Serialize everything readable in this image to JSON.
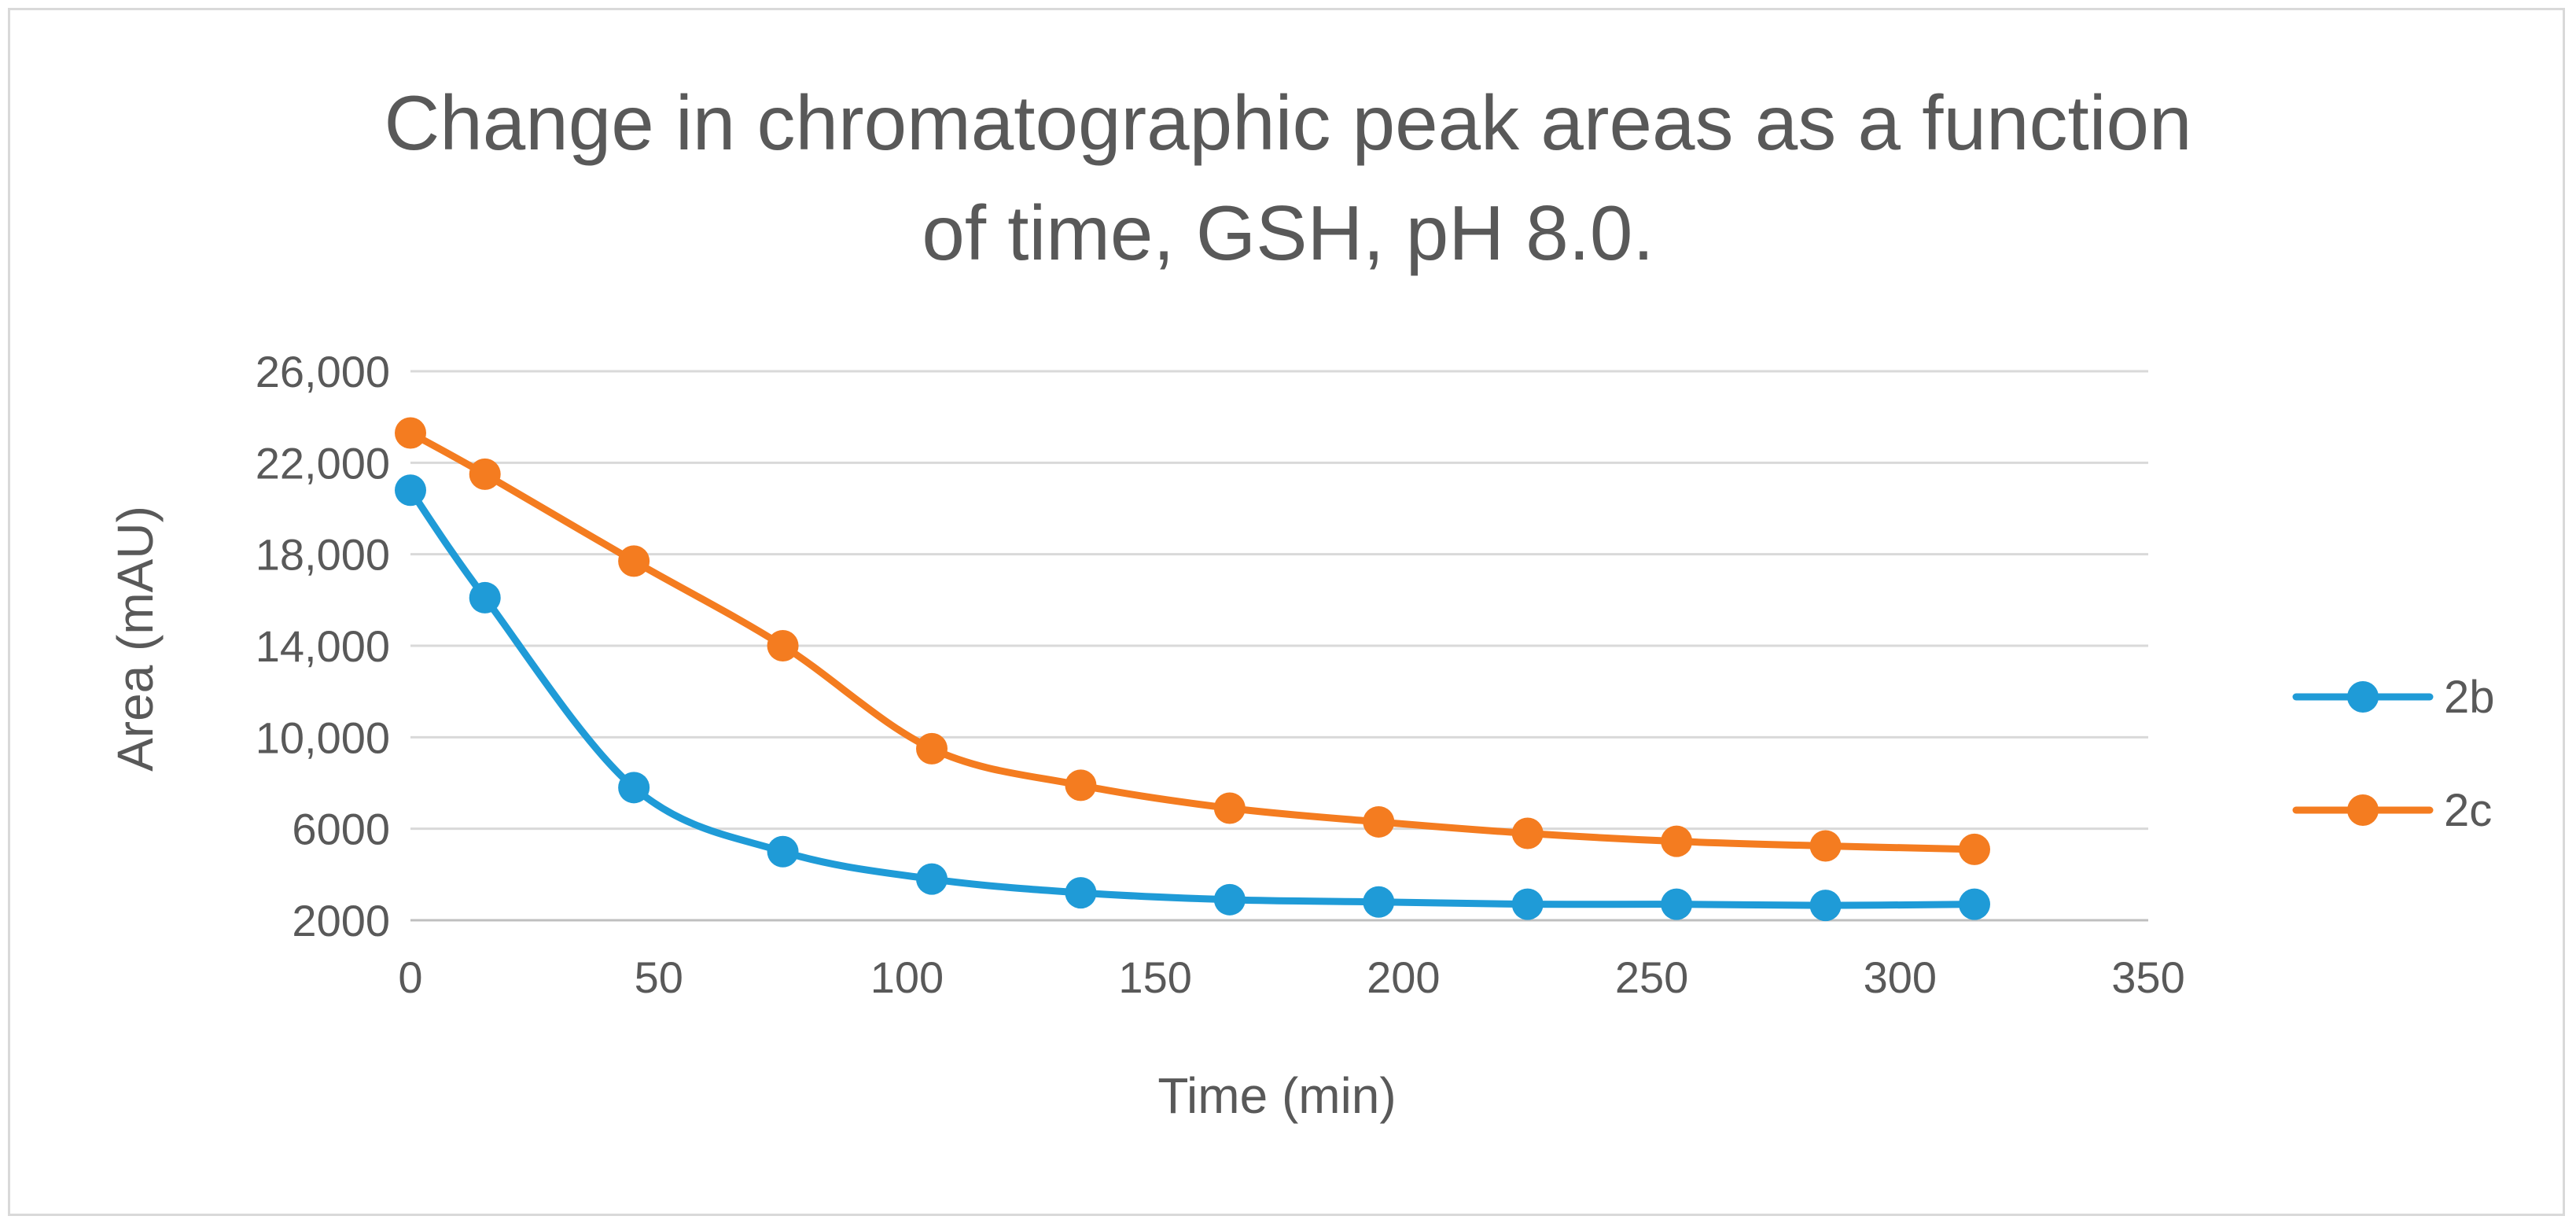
{
  "chart_data": {
    "type": "line",
    "title_lines": [
      "Change in chromatographic peak areas as a function",
      "of time, GSH, pH 8.0."
    ],
    "xlabel": "Time (min)",
    "ylabel": "Area (mAU)",
    "xlim": [
      0,
      350
    ],
    "ylim": [
      2000,
      26000
    ],
    "x_ticks": [
      0,
      50,
      100,
      150,
      200,
      250,
      300,
      350
    ],
    "x_tick_labels": [
      "0",
      "50",
      "100",
      "150",
      "200",
      "250",
      "300",
      "350"
    ],
    "y_ticks": [
      2000,
      6000,
      10000,
      14000,
      18000,
      22000,
      26000
    ],
    "y_tick_labels": [
      "2000",
      "6000",
      "10,000",
      "14,000",
      "18,000",
      "22,000",
      "26,000"
    ],
    "grid": true,
    "smoothed": true,
    "legend_position": "right",
    "x": [
      0,
      15,
      45,
      75,
      105,
      135,
      165,
      195,
      225,
      255,
      285,
      315
    ],
    "series": [
      {
        "name": "2b",
        "color": "#1f9bd7",
        "values": [
          20800,
          16100,
          7800,
          5000,
          3800,
          3200,
          2900,
          2800,
          2700,
          2700,
          2650,
          2700
        ]
      },
      {
        "name": "2c",
        "color": "#f47c20",
        "values": [
          23300,
          21500,
          17700,
          14000,
          9500,
          7900,
          6900,
          6300,
          5800,
          5450,
          5250,
          5100
        ]
      }
    ]
  }
}
